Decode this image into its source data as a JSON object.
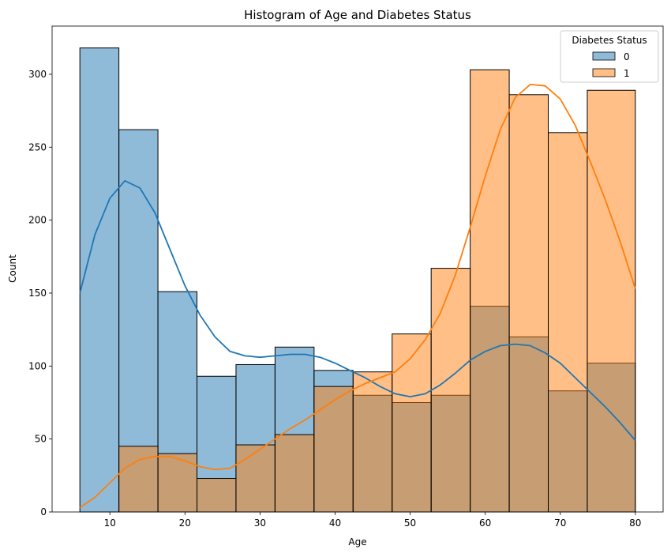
{
  "chart_data": {
    "type": "histogram",
    "title": "Histogram of Age and Diabetes Status",
    "xlabel": "Age",
    "ylabel": "Count",
    "xlim": [
      2.3,
      83.7
    ],
    "ylim": [
      0,
      333
    ],
    "xticks": [
      10,
      20,
      30,
      40,
      50,
      60,
      70,
      80
    ],
    "yticks": [
      0,
      50,
      100,
      150,
      200,
      250,
      300
    ],
    "bin_edges": [
      6,
      11.2,
      16.4,
      21.6,
      26.8,
      32,
      37.2,
      42.4,
      47.6,
      52.8,
      58,
      63.2,
      68.4,
      73.6,
      80
    ],
    "legend": {
      "title": "Diabetes Status",
      "placement": "top-right"
    },
    "series": [
      {
        "name": "0",
        "color": "#1f77b4",
        "values": [
          318,
          262,
          151,
          93,
          101,
          113,
          97,
          80,
          75,
          80,
          141,
          120,
          83,
          102
        ],
        "kde": [
          [
            6,
            150
          ],
          [
            8,
            190
          ],
          [
            10,
            215
          ],
          [
            12,
            227
          ],
          [
            14,
            222
          ],
          [
            16,
            205
          ],
          [
            18,
            180
          ],
          [
            20,
            155
          ],
          [
            22,
            135
          ],
          [
            24,
            120
          ],
          [
            26,
            110
          ],
          [
            28,
            107
          ],
          [
            30,
            106
          ],
          [
            32,
            107
          ],
          [
            34,
            108
          ],
          [
            36,
            108
          ],
          [
            38,
            106
          ],
          [
            40,
            102
          ],
          [
            42,
            97
          ],
          [
            44,
            92
          ],
          [
            46,
            86
          ],
          [
            48,
            81
          ],
          [
            50,
            79
          ],
          [
            52,
            81
          ],
          [
            54,
            87
          ],
          [
            56,
            95
          ],
          [
            58,
            104
          ],
          [
            60,
            110
          ],
          [
            62,
            114
          ],
          [
            64,
            115
          ],
          [
            66,
            114
          ],
          [
            68,
            109
          ],
          [
            70,
            102
          ],
          [
            72,
            92
          ],
          [
            74,
            82
          ],
          [
            76,
            72
          ],
          [
            78,
            61
          ],
          [
            80,
            49
          ]
        ]
      },
      {
        "name": "1",
        "color": "#ff7f0e",
        "values": [
          0,
          45,
          40,
          23,
          46,
          53,
          86,
          96,
          122,
          167,
          303,
          286,
          260,
          289
        ],
        "kde": [
          [
            6,
            3
          ],
          [
            8,
            10
          ],
          [
            10,
            20
          ],
          [
            12,
            30
          ],
          [
            14,
            36
          ],
          [
            16,
            38
          ],
          [
            18,
            38
          ],
          [
            20,
            35
          ],
          [
            22,
            31
          ],
          [
            24,
            29
          ],
          [
            26,
            30
          ],
          [
            28,
            36
          ],
          [
            30,
            43
          ],
          [
            32,
            50
          ],
          [
            34,
            57
          ],
          [
            36,
            63
          ],
          [
            38,
            70
          ],
          [
            40,
            77
          ],
          [
            42,
            83
          ],
          [
            44,
            88
          ],
          [
            46,
            92
          ],
          [
            48,
            96
          ],
          [
            50,
            105
          ],
          [
            52,
            118
          ],
          [
            54,
            136
          ],
          [
            56,
            162
          ],
          [
            58,
            195
          ],
          [
            60,
            230
          ],
          [
            62,
            262
          ],
          [
            64,
            284
          ],
          [
            66,
            293
          ],
          [
            68,
            292
          ],
          [
            70,
            283
          ],
          [
            72,
            265
          ],
          [
            74,
            240
          ],
          [
            76,
            214
          ],
          [
            78,
            185
          ],
          [
            80,
            153
          ]
        ]
      }
    ]
  }
}
